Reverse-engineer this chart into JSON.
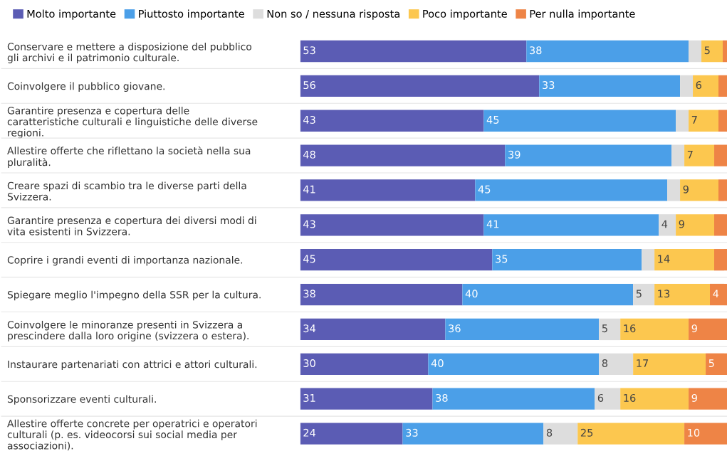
{
  "chart_data": {
    "type": "bar",
    "orientation": "horizontal",
    "stacked": true,
    "legend": "top left",
    "tick_labels": "y",
    "grid": false,
    "xlim": [
      0,
      100
    ],
    "categories": [
      "Conservare e mettere a disposizione del pubblico\ngli archivi e il patrimonio culturale.",
      "Coinvolgere il pubblico giovane.",
      "Garantire presenza e copertura delle\ncaratteristiche culturali e linguistiche delle diverse\nregioni.",
      "Allestire offerte che riflettano la società nella sua\npluralità.",
      "Creare spazi di scambio tra le diverse parti della\nSvizzera.",
      "Garantire presenza e copertura dei diversi modi di\nvita esistenti in Svizzera.",
      "Coprire i grandi eventi di importanza nazionale.",
      "Spiegare meglio l'impegno della SSR per la cultura.",
      "Coinvolgere le minoranze presenti in Svizzera a\nprescindere dalla loro origine (svizzera o estera).",
      "Instaurare partenariati con attrici e attori culturali.",
      "Sponsorizzare eventi culturali.",
      "Allestire offerte concrete per operatrici e operatori\nculturali (p. es. videocorsi sui social media per\nassociazioni)."
    ],
    "series": [
      {
        "name": "Molto importante",
        "color": "#5b5cb4",
        "values": [
          53,
          56,
          43,
          48,
          41,
          43,
          45,
          38,
          34,
          30,
          31,
          24
        ],
        "value_labels": [
          "53",
          "56",
          "43",
          "48",
          "41",
          "43",
          "45",
          "38",
          "34",
          "30",
          "31",
          "24"
        ]
      },
      {
        "name": "Piuttosto importante",
        "color": "#4b9fe8",
        "values": [
          38,
          33,
          45,
          39,
          45,
          41,
          35,
          40,
          36,
          40,
          38,
          33
        ],
        "value_labels": [
          "38",
          "33",
          "45",
          "39",
          "45",
          "41",
          "35",
          "40",
          "36",
          "40",
          "38",
          "33"
        ]
      },
      {
        "name": "Non so / nessuna risposta",
        "color": "#dddddd",
        "values": [
          3,
          3,
          3,
          3,
          3,
          4,
          3,
          5,
          5,
          8,
          6,
          8
        ],
        "value_labels": [
          null,
          null,
          null,
          null,
          null,
          "4",
          null,
          "5",
          "5",
          "8",
          "6",
          "8"
        ]
      },
      {
        "name": "Poco importante",
        "color": "#fcc74f",
        "values": [
          5,
          6,
          7,
          7,
          9,
          9,
          14,
          13,
          16,
          17,
          16,
          25
        ],
        "value_labels": [
          "5",
          "6",
          "7",
          "7",
          "9",
          "9",
          "14",
          "13",
          "16",
          "17",
          "16",
          "25"
        ]
      },
      {
        "name": "Per nulla importante",
        "color": "#ee8446",
        "values": [
          1,
          2,
          2,
          3,
          2,
          3,
          3,
          4,
          9,
          5,
          9,
          10
        ],
        "value_labels": [
          null,
          null,
          null,
          null,
          null,
          null,
          null,
          "4",
          "9",
          "5",
          "9",
          "10"
        ]
      }
    ]
  }
}
